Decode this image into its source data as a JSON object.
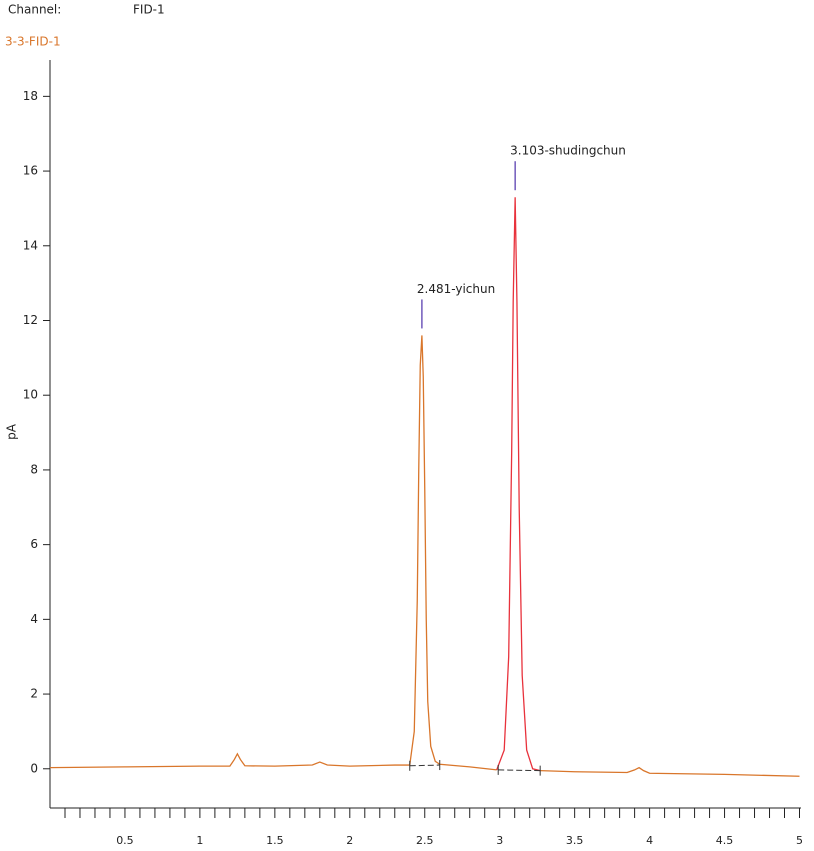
{
  "header": {
    "channel_label": "Channel:",
    "channel_value": "FID-1"
  },
  "chart_data": {
    "type": "line",
    "title": "3-3-FID-1",
    "ylabel": "pA",
    "xlim": [
      0,
      5.01
    ],
    "ylim": [
      -1.05,
      19.0
    ],
    "xticks": [
      0.5,
      1,
      1.5,
      2,
      2.5,
      3,
      3.5,
      4,
      4.5,
      5
    ],
    "xminorticks": [
      0.1,
      0.2,
      0.3,
      0.4,
      0.6,
      0.7,
      0.8,
      0.9,
      1.1,
      1.2,
      1.3,
      1.4,
      1.6,
      1.7,
      1.8,
      1.9,
      2.1,
      2.2,
      2.3,
      2.4,
      2.6,
      2.7,
      2.8,
      2.9,
      3.1,
      3.2,
      3.3,
      3.4,
      3.6,
      3.7,
      3.8,
      3.9,
      4.1,
      4.2,
      4.3,
      4.4,
      4.6,
      4.7,
      4.8,
      4.9
    ],
    "yticks": [
      0,
      2,
      4,
      6,
      8,
      10,
      12,
      14,
      16,
      18
    ],
    "series": [
      {
        "color": "#d9762b",
        "x": [
          0,
          0.5,
          1.0,
          1.2,
          1.23,
          1.25,
          1.27,
          1.3,
          1.5,
          1.75,
          1.8,
          1.85,
          2.0,
          2.3,
          2.4,
          2.43,
          2.45,
          2.46,
          2.47,
          2.481,
          2.49,
          2.5,
          2.51,
          2.52,
          2.54,
          2.57,
          2.6,
          2.8,
          2.98,
          3.1,
          3.27,
          3.5,
          3.85,
          3.9,
          3.93,
          3.96,
          4.0,
          4.5,
          5.0
        ],
        "values": [
          0.03,
          0.05,
          0.07,
          0.07,
          0.25,
          0.4,
          0.25,
          0.08,
          0.07,
          0.1,
          0.18,
          0.1,
          0.07,
          0.1,
          0.1,
          1.0,
          4.5,
          8.0,
          10.8,
          11.6,
          10.5,
          7.5,
          4.0,
          1.8,
          0.6,
          0.2,
          0.12,
          0.05,
          -0.03,
          null,
          -0.05,
          -0.08,
          -0.1,
          -0.03,
          0.03,
          -0.05,
          -0.12,
          -0.15,
          -0.2
        ]
      },
      {
        "color": "#e8323c",
        "x": [
          2.98,
          3.03,
          3.06,
          3.08,
          3.09,
          3.103,
          3.115,
          3.13,
          3.15,
          3.18,
          3.22,
          3.27
        ],
        "values": [
          -0.03,
          0.5,
          3.0,
          8.5,
          12.5,
          15.3,
          12.5,
          7.0,
          2.5,
          0.5,
          0.0,
          -0.05
        ]
      }
    ],
    "integration_baselines": [
      {
        "x": [
          2.4,
          2.6
        ],
        "y": [
          0.08,
          0.1
        ]
      },
      {
        "x": [
          2.99,
          3.27
        ],
        "y": [
          -0.03,
          -0.05
        ]
      }
    ],
    "annotations": [
      {
        "text": "2.481-yichun",
        "x": 2.481,
        "y": 11.6
      },
      {
        "text": "3.103-shudingchun",
        "x": 3.103,
        "y": 15.3
      }
    ]
  }
}
